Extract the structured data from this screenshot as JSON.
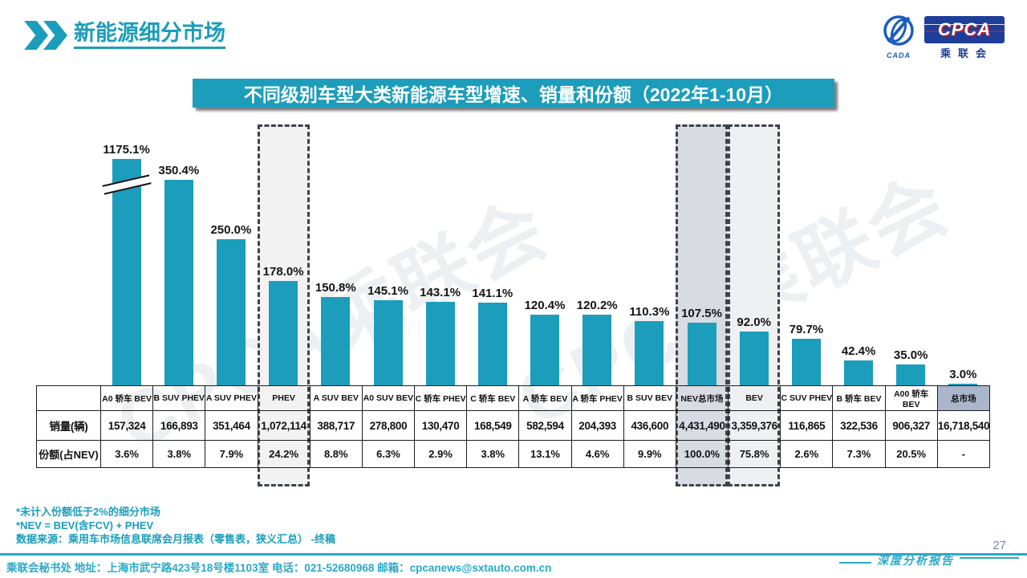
{
  "page": {
    "title": "新能源细分市场",
    "page_number": "27",
    "report_label": "深度分析报告",
    "footer_text": "乘联会秘书处   地址：上海市武宁路423号18号楼1103室  电话：021-52680968   邮箱：cpcanews@sxtauto.com.cn",
    "watermark_text": "CPCA乘联会"
  },
  "logo": {
    "main": "CPCA",
    "sub": "乘联会",
    "badge": "CADA"
  },
  "banner": {
    "title": "不同级别车型大类新能源车型增速、销量和份额（2022年1-10月）"
  },
  "notes": [
    "*未计入份额低于2%的细分市场",
    "*NEV = BEV(含FCV) + PHEV",
    "数据来源：乘用车市场信息联席会月报表（零售表，狭义汇总） -终稿"
  ],
  "colors": {
    "accent": "#1B9DBB",
    "footer_teal": "#29A9C8",
    "dash_border": "#3c424e",
    "total_market_header_fill": "#a9b6cb"
  },
  "chart_data": {
    "type": "bar",
    "title": "不同级别车型大类新能源车型增速、销量和份额（2022年1-10月）",
    "categories": [
      "A0 轿车 BEV",
      "B SUV PHEV",
      "A SUV PHEV",
      "PHEV",
      "A SUV BEV",
      "A0 SUV BEV",
      "C 轿车 PHEV",
      "C 轿车 BEV",
      "A 轿车 BEV",
      "A 轿车 PHEV",
      "B SUV BEV",
      "NEV总市场",
      "BEV",
      "C SUV PHEV",
      "B 轿车 BEV",
      "A00 轿车 BEV",
      "总市场"
    ],
    "values": [
      1175.1,
      350.4,
      250.0,
      178.0,
      150.8,
      145.1,
      143.1,
      141.1,
      120.4,
      120.2,
      110.3,
      107.5,
      92.0,
      79.7,
      42.4,
      35.0,
      3.0
    ],
    "value_labels": [
      "1175.1%",
      "350.4%",
      "250.0%",
      "178.0%",
      "150.8%",
      "145.1%",
      "143.1%",
      "141.1%",
      "120.4%",
      "120.2%",
      "110.3%",
      "107.5%",
      "92.0%",
      "79.7%",
      "42.4%",
      "35.0%",
      "3.0%"
    ],
    "bar_color": "#1B9DBB",
    "broken_axis_index": 0,
    "highlight_columns": [
      {
        "index": 3,
        "fill": "#f2f2f2"
      },
      {
        "index": 11,
        "fill": "#d8dbe2"
      },
      {
        "index": 12,
        "fill": "#eff0f1"
      }
    ],
    "table": {
      "row_labels": [
        "销量(辆)",
        "份额(占NEV)"
      ],
      "sales": [
        "157,324",
        "166,893",
        "351,464",
        "1,072,114",
        "388,717",
        "278,800",
        "130,470",
        "168,549",
        "582,594",
        "204,393",
        "436,600",
        "4,431,490",
        "3,359,376",
        "116,865",
        "322,536",
        "906,327",
        "16,718,540"
      ],
      "share": [
        "3.6%",
        "3.8%",
        "7.9%",
        "24.2%",
        "8.8%",
        "6.3%",
        "2.9%",
        "3.8%",
        "13.1%",
        "4.6%",
        "9.9%",
        "100.0%",
        "75.8%",
        "2.6%",
        "7.3%",
        "20.5%",
        "-"
      ]
    }
  }
}
